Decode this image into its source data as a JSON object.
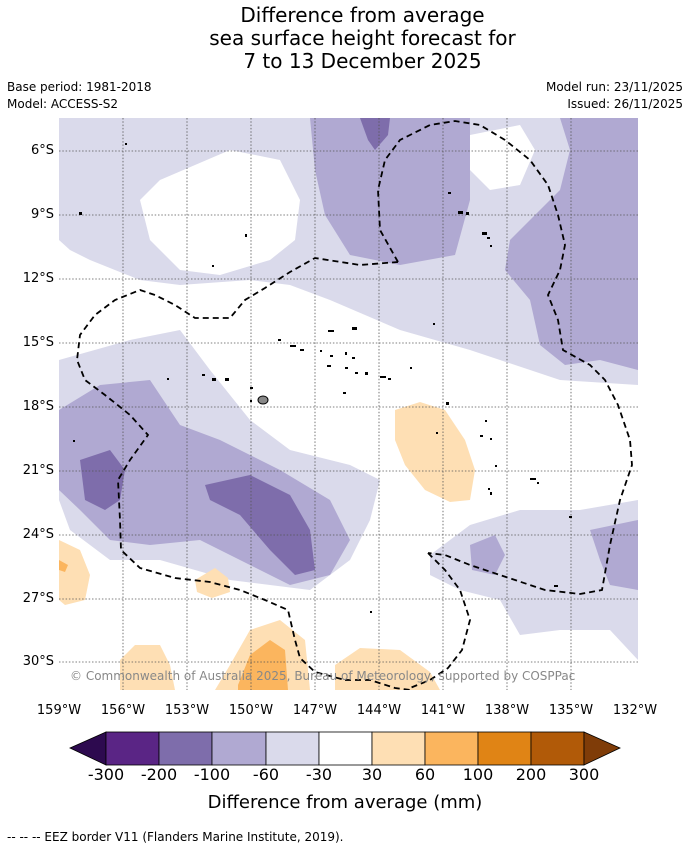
{
  "title": {
    "line1": "Difference from average",
    "line2": "sea surface height forecast for",
    "line3": "7 to 13 December 2025"
  },
  "meta": {
    "base_period": "Base period: 1981-2018",
    "model": "Model: ACCESS-S2",
    "model_run": "Model run: 23/11/2025",
    "issued": "Issued: 26/11/2025"
  },
  "map": {
    "y_ticks": [
      "6°S",
      "9°S",
      "12°S",
      "15°S",
      "18°S",
      "21°S",
      "24°S",
      "27°S",
      "30°S"
    ],
    "x_ticks": [
      "159°W",
      "156°W",
      "153°W",
      "150°W",
      "147°W",
      "144°W",
      "141°W",
      "138°W",
      "135°W",
      "132°W"
    ],
    "copyright": "© Commonwealth of Australia 2025, Bureau of Meteorology, supported by COSPPac"
  },
  "colorbar": {
    "ticks": [
      "-300",
      "-200",
      "-100",
      "-60",
      "-30",
      "30",
      "60",
      "100",
      "200",
      "300"
    ],
    "colors": [
      "#2d0a4f",
      "#5a2585",
      "#7e6dab",
      "#b0a9d2",
      "#dadaeb",
      "#ffffff",
      "#fedfb4",
      "#fbb55e",
      "#e08415",
      "#b15a08",
      "#7f3c08"
    ],
    "label": "Difference from average (mm)"
  },
  "legend": {
    "eez": "--  --  -- EEZ border V11 (Flanders Marine Institute, 2019)."
  }
}
